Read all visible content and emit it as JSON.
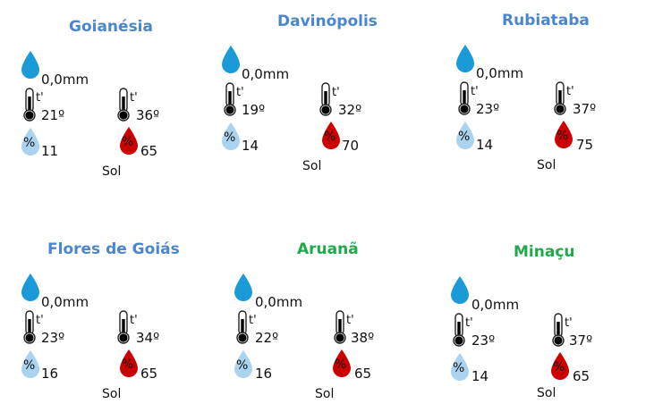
{
  "colors": {
    "title_blue": "#4a86d0",
    "title_green": "#1faa4a",
    "rain_drop": "#1a9ad6",
    "humidity_min_drop": "#a9d3ee",
    "humidity_max_drop": "#cc0000",
    "thermo_min": "#2a8fd4",
    "thermo_max": "#d11f1f"
  },
  "icons": {
    "rain": "rain-drop-icon",
    "temp_min": "thermometer-cold-icon",
    "temp_max": "thermometer-hot-icon",
    "humidity_min": "humidity-drop-light-icon",
    "humidity_max": "humidity-drop-red-icon"
  },
  "glyphs": {
    "thermo_label": "t'",
    "humidity_label": "%"
  },
  "cities": [
    {
      "name": "Goianésia",
      "title_color": "#4a86d0",
      "rain": "0,0mm",
      "temp_min": "21º",
      "temp_max": "36º",
      "humidity_min": "11",
      "humidity_max": "65",
      "condition": "Sol"
    },
    {
      "name": "Davinópolis",
      "title_color": "#4a86d0",
      "rain": "0,0mm",
      "temp_min": "19º",
      "temp_max": "32º",
      "humidity_min": "14",
      "humidity_max": "70",
      "condition": "Sol"
    },
    {
      "name": "Rubiataba",
      "title_color": "#4a86d0",
      "rain": "0,0mm",
      "temp_min": "23º",
      "temp_max": "37º",
      "humidity_min": "14",
      "humidity_max": "75",
      "condition": "Sol"
    },
    {
      "name": "Flores de Goiás",
      "title_color": "#4a86d0",
      "rain": "0,0mm",
      "temp_min": "23º",
      "temp_max": "34º",
      "humidity_min": "16",
      "humidity_max": "65",
      "condition": "Sol"
    },
    {
      "name": "Aruanã",
      "title_color": "#1faa4a",
      "rain": "0,0mm",
      "temp_min": "22º",
      "temp_max": "38º",
      "humidity_min": "16",
      "humidity_max": "65",
      "condition": "Sol"
    },
    {
      "name": "Minaçu",
      "title_color": "#1faa4a",
      "rain": "0,0mm",
      "temp_min": "23º",
      "temp_max": "37º",
      "humidity_min": "14",
      "humidity_max": "65",
      "condition": "Sol"
    }
  ]
}
